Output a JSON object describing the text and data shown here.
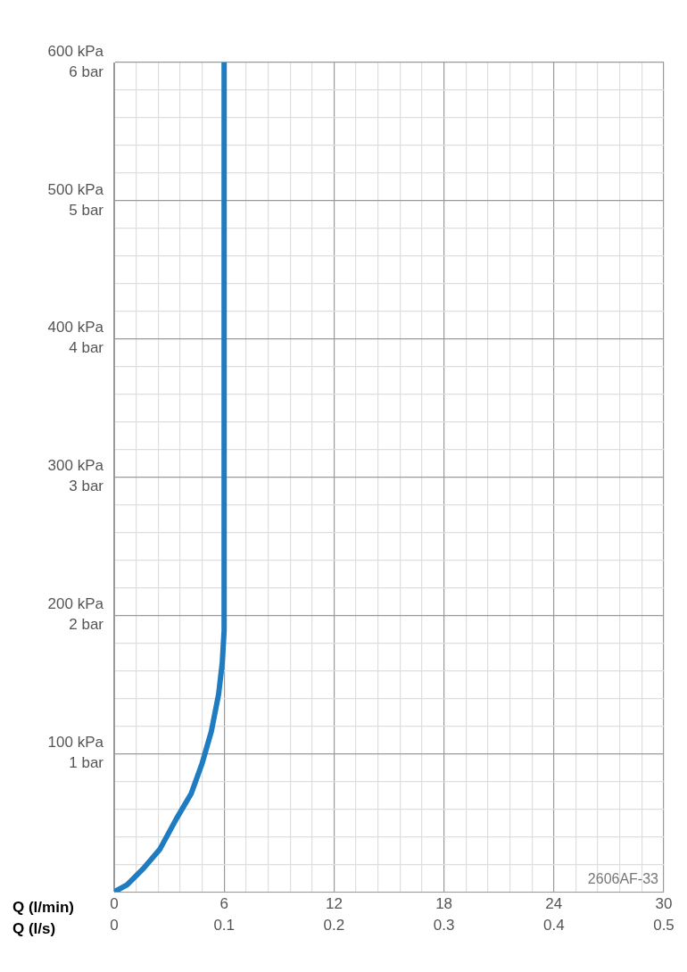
{
  "chart_data": {
    "type": "line",
    "xlabel": "Q (l/min)",
    "x2label": "Q (l/s)",
    "xlim": [
      0,
      30
    ],
    "xticks": [
      0,
      {
        "value": 1.2,
        "label": null
      },
      {
        "value": 2.4,
        "label": null
      },
      {
        "value": 3.6,
        "label": null
      },
      {
        "value": 4.8,
        "label": null
      },
      6,
      {
        "value": 7.2,
        "label": null
      },
      {
        "value": 8.4,
        "label": null
      },
      {
        "value": 9.6,
        "label": null
      },
      {
        "value": 10.8,
        "label": null
      },
      12,
      {
        "value": 13.2,
        "label": null
      },
      {
        "value": 14.4,
        "label": null
      },
      {
        "value": 15.6,
        "label": null
      },
      {
        "value": 16.8,
        "label": null
      },
      18,
      {
        "value": 19.2,
        "label": null
      },
      {
        "value": 20.4,
        "label": null
      },
      {
        "value": 21.6,
        "label": null
      },
      {
        "value": 22.8,
        "label": null
      },
      24,
      {
        "value": 25.2,
        "label": null
      },
      {
        "value": 26.4,
        "label": null
      },
      {
        "value": 27.6,
        "label": null
      },
      {
        "value": 28.8,
        "label": null
      },
      30
    ],
    "x2lim": [
      0,
      0.5
    ],
    "x2ticks": [
      0,
      0.1,
      0.2,
      0.3,
      0.4,
      0.5
    ],
    "ylim": [
      0,
      600
    ],
    "yticks": [
      {
        "value": 0,
        "label": null
      },
      {
        "value": 20,
        "label": null
      },
      {
        "value": 40,
        "label": null
      },
      {
        "value": 60,
        "label": null
      },
      {
        "value": 80,
        "label": null
      },
      {
        "value": 100,
        "label": "100 kPa"
      },
      {
        "value": 120,
        "label": null
      },
      {
        "value": 140,
        "label": null
      },
      {
        "value": 160,
        "label": null
      },
      {
        "value": 180,
        "label": null
      },
      {
        "value": 200,
        "label": "200 kPa"
      },
      {
        "value": 220,
        "label": null
      },
      {
        "value": 240,
        "label": null
      },
      {
        "value": 260,
        "label": null
      },
      {
        "value": 280,
        "label": null
      },
      {
        "value": 300,
        "label": "300 kPa"
      },
      {
        "value": 320,
        "label": null
      },
      {
        "value": 340,
        "label": null
      },
      {
        "value": 360,
        "label": null
      },
      {
        "value": 380,
        "label": null
      },
      {
        "value": 400,
        "label": "400 kPa"
      },
      {
        "value": 420,
        "label": null
      },
      {
        "value": 440,
        "label": null
      },
      {
        "value": 460,
        "label": null
      },
      {
        "value": 480,
        "label": null
      },
      {
        "value": 500,
        "label": "500 kPa"
      },
      {
        "value": 520,
        "label": null
      },
      {
        "value": 540,
        "label": null
      },
      {
        "value": 560,
        "label": null
      },
      {
        "value": 580,
        "label": null
      },
      {
        "value": 600,
        "label": "600 kPa"
      }
    ],
    "y2lim": [
      0,
      6
    ],
    "y2ticks": [
      {
        "value": 0,
        "label": null
      },
      {
        "value": 1,
        "label": "1 bar"
      },
      {
        "value": 2,
        "label": "2 bar"
      },
      {
        "value": 3,
        "label": "3 bar"
      },
      {
        "value": 4,
        "label": "4 bar"
      },
      {
        "value": 5,
        "label": "5 bar"
      },
      {
        "value": 6,
        "label": "6 bar"
      }
    ],
    "grid": true,
    "legend": false,
    "marker": "none",
    "line_style": "solid",
    "annotations": [
      "2606AF-33"
    ],
    "series": [
      {
        "color": "#1f7cc1",
        "x": [
          0,
          0.7,
          1.6,
          2.5,
          3.4,
          4.2,
          4.8,
          5.3,
          5.7,
          5.9,
          6,
          6
        ],
        "values": [
          0,
          5,
          17,
          31,
          53,
          71,
          93,
          116,
          143,
          166,
          189,
          600
        ]
      }
    ]
  }
}
